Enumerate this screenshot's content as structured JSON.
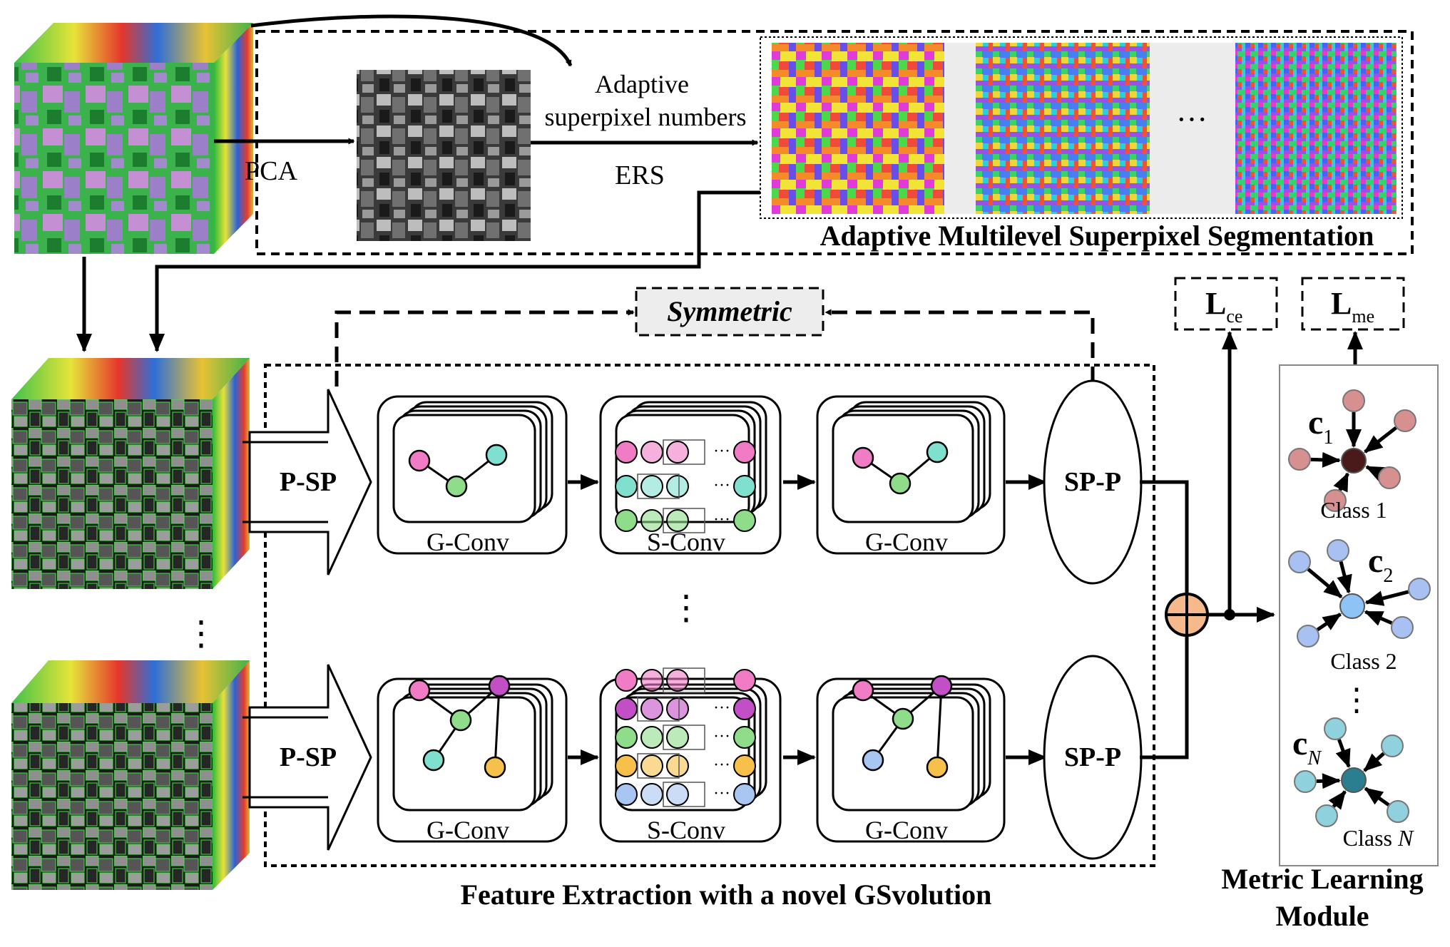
{
  "top": {
    "pca_label": "PCA",
    "adaptive_line1": "Adaptive",
    "adaptive_line2": "superpixel numbers",
    "ers_label": "ERS",
    "ellipsis": "···",
    "segmentation_title": "Adaptive Multilevel Superpixel Segmentation"
  },
  "symmetric_label": "Symmetric",
  "vertical_ellipsis": "⋮",
  "branches": [
    {
      "input_label": "P-SP",
      "gconv1_label": "G-Conv",
      "sconv_label": "S-Conv",
      "gconv2_label": "G-Conv",
      "pool_label": "SP-P"
    },
    {
      "input_label": "P-SP",
      "gconv1_label": "G-Conv",
      "sconv_label": "S-Conv",
      "gconv2_label": "G-Conv",
      "pool_label": "SP-P"
    }
  ],
  "feature_caption": "Feature Extraction with a novel GSvolution",
  "losses": {
    "ce_main": "L",
    "ce_sub": "ce",
    "me_main": "L",
    "me_sub": "me"
  },
  "metric": {
    "class1_center": "c",
    "class1_sub": "1",
    "class1_label": "Class 1",
    "class2_center": "c",
    "class2_sub": "2",
    "class2_label": "Class 2",
    "classN_center": "c",
    "classN_sub": "N",
    "classN_label_prefix": "Class ",
    "classN_label_var": "N",
    "title_line1": "Metric Learning",
    "title_line2": "Module"
  },
  "colors": {
    "node_pink": "#f07cc6",
    "node_green": "#8fdc8a",
    "node_teal": "#7fe0cf",
    "node_purple": "#c34fc7",
    "node_yellow": "#f6c04a",
    "node_blue": "#a9c5f2",
    "c1_center": "#4a1a1a",
    "c1_node": "#d69090",
    "c2_center": "#8ec3f5",
    "c2_node": "#a8c0f2",
    "cN_center": "#2a7e90",
    "cN_node": "#8fd1dc",
    "fusion": "#f6b98c"
  }
}
